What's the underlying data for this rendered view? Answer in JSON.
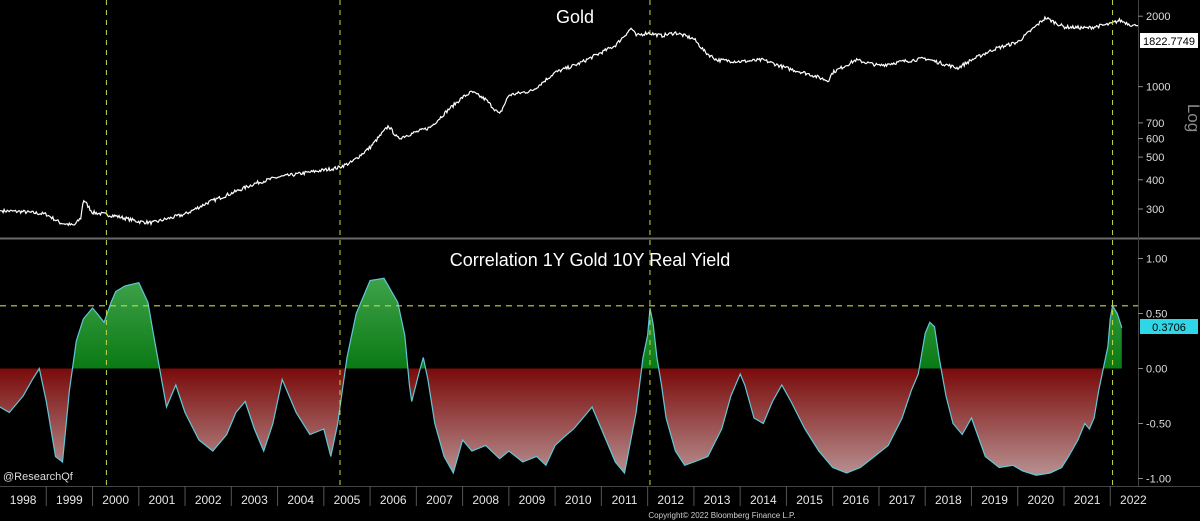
{
  "colors": {
    "background": "#000000",
    "grid": "#555555",
    "marker": "#c8d64a",
    "price_line": "#ffffff",
    "positive_fill": "#0b8a1a",
    "negative_fill": "#8e0f0f",
    "corr_line": "#5fc8d6",
    "last_value_badge": "#2fd7e6"
  },
  "chart_data": [
    {
      "type": "line",
      "title": "Gold",
      "yscale": "log",
      "ylabel": "Log",
      "ylim": [
        230,
        2300
      ],
      "yticks": [
        300,
        400,
        500,
        600,
        700,
        1000,
        2000
      ],
      "last_value_label": "1822.7749",
      "x_range": [
        1998.0,
        2022.6
      ],
      "x": [
        1998.0,
        1998.5,
        1999.0,
        1999.3,
        1999.6,
        1999.75,
        1999.8,
        2000.0,
        2000.5,
        2001.0,
        2001.3,
        2001.6,
        2002.0,
        2002.5,
        2003.0,
        2003.5,
        2004.0,
        2004.5,
        2005.0,
        2005.3,
        2005.6,
        2006.0,
        2006.4,
        2006.6,
        2006.9,
        2007.3,
        2007.7,
        2008.0,
        2008.2,
        2008.5,
        2008.8,
        2009.0,
        2009.5,
        2010.0,
        2010.5,
        2011.0,
        2011.3,
        2011.65,
        2011.75,
        2012.0,
        2012.3,
        2012.6,
        2013.0,
        2013.25,
        2013.5,
        2014.0,
        2014.5,
        2015.0,
        2015.5,
        2015.9,
        2016.0,
        2016.5,
        2017.0,
        2017.5,
        2018.0,
        2018.7,
        2019.0,
        2019.5,
        2020.0,
        2020.6,
        2021.0,
        2021.5,
        2022.0,
        2022.2,
        2022.5
      ],
      "y": [
        295,
        292,
        285,
        262,
        255,
        275,
        330,
        290,
        280,
        265,
        262,
        272,
        285,
        320,
        350,
        385,
        410,
        425,
        440,
        450,
        475,
        550,
        680,
        600,
        630,
        670,
        800,
        900,
        950,
        880,
        760,
        920,
        960,
        1150,
        1250,
        1400,
        1500,
        1780,
        1650,
        1700,
        1650,
        1700,
        1600,
        1400,
        1300,
        1280,
        1300,
        1200,
        1130,
        1060,
        1150,
        1300,
        1230,
        1280,
        1320,
        1200,
        1300,
        1450,
        1550,
        1970,
        1800,
        1780,
        1850,
        1920,
        1822.77
      ]
    },
    {
      "type": "area",
      "title": "Correlation 1Y Gold 10Y Real Yield",
      "ylim": [
        -1.05,
        1.15
      ],
      "yticks": [
        1.0,
        0.5,
        0.0,
        -0.5,
        -1.0
      ],
      "ytick_labels": [
        "1.00",
        "0.50",
        "0.00",
        "-0.50",
        "-1.00"
      ],
      "reference_line": 0.57,
      "last_value_label": "0.3706",
      "x": [
        1998.0,
        1998.2,
        1998.5,
        1998.7,
        1998.85,
        1999.0,
        1999.2,
        1999.35,
        1999.5,
        1999.65,
        1999.8,
        2000.0,
        2000.1,
        2000.25,
        2000.4,
        2000.5,
        2000.7,
        2001.0,
        2001.2,
        2001.3,
        2001.45,
        2001.6,
        2001.8,
        2002.0,
        2002.3,
        2002.6,
        2002.9,
        2003.1,
        2003.3,
        2003.5,
        2003.7,
        2003.9,
        2004.1,
        2004.4,
        2004.7,
        2005.0,
        2005.15,
        2005.3,
        2005.4,
        2005.5,
        2005.7,
        2006.0,
        2006.3,
        2006.6,
        2006.75,
        2006.85,
        2006.9,
        2007.05,
        2007.15,
        2007.25,
        2007.4,
        2007.6,
        2007.8,
        2008.0,
        2008.2,
        2008.5,
        2008.8,
        2009.0,
        2009.3,
        2009.6,
        2009.8,
        2010.0,
        2010.2,
        2010.4,
        2010.6,
        2010.8,
        2011.0,
        2011.3,
        2011.5,
        2011.75,
        2011.9,
        2012.0,
        2012.05,
        2012.12,
        2012.2,
        2012.3,
        2012.4,
        2012.6,
        2012.8,
        2013.0,
        2013.3,
        2013.6,
        2013.8,
        2014.0,
        2014.1,
        2014.3,
        2014.5,
        2014.7,
        2014.9,
        2015.1,
        2015.4,
        2015.7,
        2016.0,
        2016.3,
        2016.6,
        2016.9,
        2017.2,
        2017.5,
        2017.7,
        2017.85,
        2018.0,
        2018.1,
        2018.2,
        2018.3,
        2018.45,
        2018.6,
        2018.8,
        2019.0,
        2019.3,
        2019.6,
        2019.9,
        2020.1,
        2020.4,
        2020.7,
        2020.95,
        2021.1,
        2021.3,
        2021.45,
        2021.55,
        2021.65,
        2021.75,
        2021.85,
        2021.95,
        2022.0,
        2022.05,
        2022.15,
        2022.25
      ],
      "y": [
        -0.35,
        -0.4,
        -0.25,
        -0.1,
        0.0,
        -0.3,
        -0.8,
        -0.85,
        -0.2,
        0.25,
        0.45,
        0.55,
        0.5,
        0.42,
        0.6,
        0.7,
        0.75,
        0.78,
        0.6,
        0.35,
        0.0,
        -0.35,
        -0.15,
        -0.4,
        -0.65,
        -0.75,
        -0.6,
        -0.4,
        -0.3,
        -0.55,
        -0.75,
        -0.5,
        -0.1,
        -0.4,
        -0.6,
        -0.55,
        -0.8,
        -0.5,
        -0.2,
        0.1,
        0.5,
        0.8,
        0.82,
        0.6,
        0.3,
        -0.15,
        -0.3,
        -0.05,
        0.1,
        -0.1,
        -0.5,
        -0.8,
        -0.95,
        -0.65,
        -0.75,
        -0.7,
        -0.82,
        -0.75,
        -0.85,
        -0.8,
        -0.88,
        -0.7,
        -0.62,
        -0.55,
        -0.45,
        -0.35,
        -0.55,
        -0.85,
        -0.95,
        -0.4,
        0.1,
        0.3,
        0.55,
        0.4,
        0.1,
        -0.15,
        -0.45,
        -0.75,
        -0.88,
        -0.85,
        -0.8,
        -0.55,
        -0.25,
        -0.05,
        -0.15,
        -0.45,
        -0.5,
        -0.3,
        -0.15,
        -0.3,
        -0.55,
        -0.75,
        -0.9,
        -0.95,
        -0.9,
        -0.8,
        -0.7,
        -0.45,
        -0.2,
        -0.05,
        0.32,
        0.42,
        0.38,
        0.1,
        -0.25,
        -0.5,
        -0.6,
        -0.45,
        -0.8,
        -0.9,
        -0.88,
        -0.93,
        -0.97,
        -0.95,
        -0.9,
        -0.8,
        -0.65,
        -0.5,
        -0.55,
        -0.45,
        -0.2,
        0.0,
        0.2,
        0.45,
        0.57,
        0.5,
        0.37
      ]
    }
  ],
  "x_axis": {
    "years": [
      "1998",
      "1999",
      "2000",
      "2001",
      "2002",
      "2003",
      "2004",
      "2005",
      "2006",
      "2007",
      "2008",
      "2009",
      "2010",
      "2011",
      "2012",
      "2013",
      "2014",
      "2015",
      "2016",
      "2017",
      "2018",
      "2019",
      "2020",
      "2021",
      "2022"
    ]
  },
  "vertical_markers": [
    2000.3,
    2005.35,
    2012.05,
    2022.05
  ],
  "watermark": "@ResearchQf",
  "copyright": "Copyright© 2022 Bloomberg Finance L.P."
}
